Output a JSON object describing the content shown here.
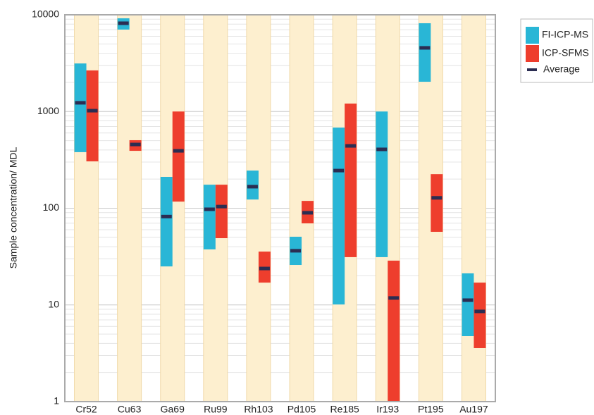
{
  "chart_data": {
    "type": "range_bar",
    "y_label": "Sample concentration/ MDL",
    "categories": [
      "Cr52",
      "Cu63",
      "Ga69",
      "Ru99",
      "Rh103",
      "Pd105",
      "Re185",
      "Ir193",
      "Pt195",
      "Au197"
    ],
    "series": [
      {
        "name": "FI-ICP-MS",
        "color": "#29b6d6",
        "low": [
          380,
          7030,
          25,
          37.5,
          123,
          25.9,
          10.1,
          31.2,
          2030,
          4.76
        ],
        "high": [
          3140,
          9200,
          211,
          175,
          245,
          50.7,
          682,
          1000,
          8180,
          21.2
        ],
        "average": [
          1230,
          8180,
          82,
          97.5,
          167,
          36.3,
          245,
          406,
          4550,
          11.2
        ]
      },
      {
        "name": "ICP-SFMS",
        "color": "#ee3e2d",
        "low": [
          305,
          392,
          117,
          49,
          17,
          69.7,
          31.2,
          1,
          57,
          3.58
        ],
        "high": [
          2660,
          505,
          1000,
          175,
          35.6,
          119,
          1208,
          28.7,
          225,
          17
        ],
        "average": [
          1020,
          456,
          392,
          104,
          23.8,
          89.7,
          441,
          11.8,
          128,
          8.57
        ]
      }
    ],
    "average_marker": {
      "name": "Average",
      "color": "#2b2d52"
    },
    "band_color": "#fdefcf",
    "ylim": [
      1,
      10000
    ],
    "yticks": [
      1,
      10,
      100,
      1000,
      10000
    ],
    "ylog": true,
    "grid": true,
    "legend": "outside-right"
  }
}
